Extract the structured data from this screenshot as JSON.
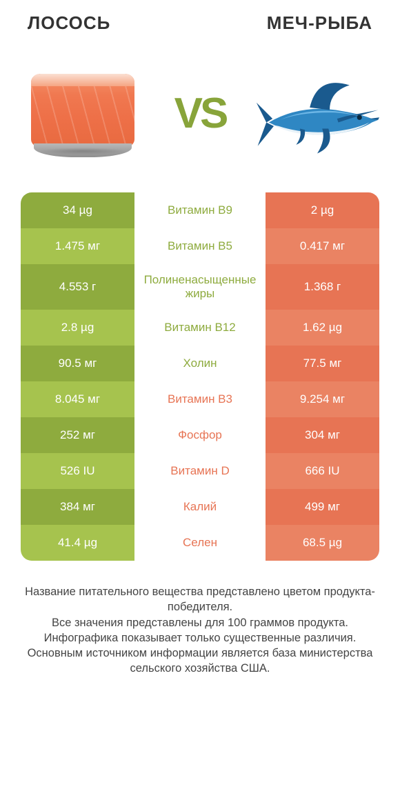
{
  "colors": {
    "green_dark": "#8eab3e",
    "green_light": "#a6c34e",
    "orange_dark": "#e77454",
    "orange_light": "#ea8363",
    "white": "#ffffff",
    "text": "#333333",
    "swordfish_blue_dark": "#1a5a8e",
    "swordfish_blue_mid": "#2f87c3",
    "swordfish_blue_light": "#6db6e6",
    "swordfish_belly": "#e8f2f8"
  },
  "header": {
    "left_title": "ЛОСОСЬ",
    "right_title": "МЕЧ-РЫБА",
    "vs_label": "VS"
  },
  "rows": [
    {
      "left": "34 µg",
      "mid": "Витамин B9",
      "right": "2 µg",
      "winner": "left",
      "tall": false
    },
    {
      "left": "1.475 мг",
      "mid": "Витамин B5",
      "right": "0.417 мг",
      "winner": "left",
      "tall": false
    },
    {
      "left": "4.553 г",
      "mid": "Полиненасыщенные жиры",
      "right": "1.368 г",
      "winner": "left",
      "tall": true
    },
    {
      "left": "2.8 µg",
      "mid": "Витамин B12",
      "right": "1.62 µg",
      "winner": "left",
      "tall": false
    },
    {
      "left": "90.5 мг",
      "mid": "Холин",
      "right": "77.5 мг",
      "winner": "left",
      "tall": false
    },
    {
      "left": "8.045 мг",
      "mid": "Витамин B3",
      "right": "9.254 мг",
      "winner": "right",
      "tall": false
    },
    {
      "left": "252 мг",
      "mid": "Фосфор",
      "right": "304 мг",
      "winner": "right",
      "tall": false
    },
    {
      "left": "526 IU",
      "mid": "Витамин D",
      "right": "666 IU",
      "winner": "right",
      "tall": false
    },
    {
      "left": "384 мг",
      "mid": "Калий",
      "right": "499 мг",
      "winner": "right",
      "tall": false
    },
    {
      "left": "41.4 µg",
      "mid": "Селен",
      "right": "68.5 µg",
      "winner": "right",
      "tall": false
    }
  ],
  "footer_lines": [
    "Название питательного вещества представлено цветом продукта-победителя.",
    "Все значения представлены для 100 граммов продукта.",
    "Инфографика показывает только существенные различия.",
    "Основным источником информации является база министерства сельского хозяйства США."
  ]
}
